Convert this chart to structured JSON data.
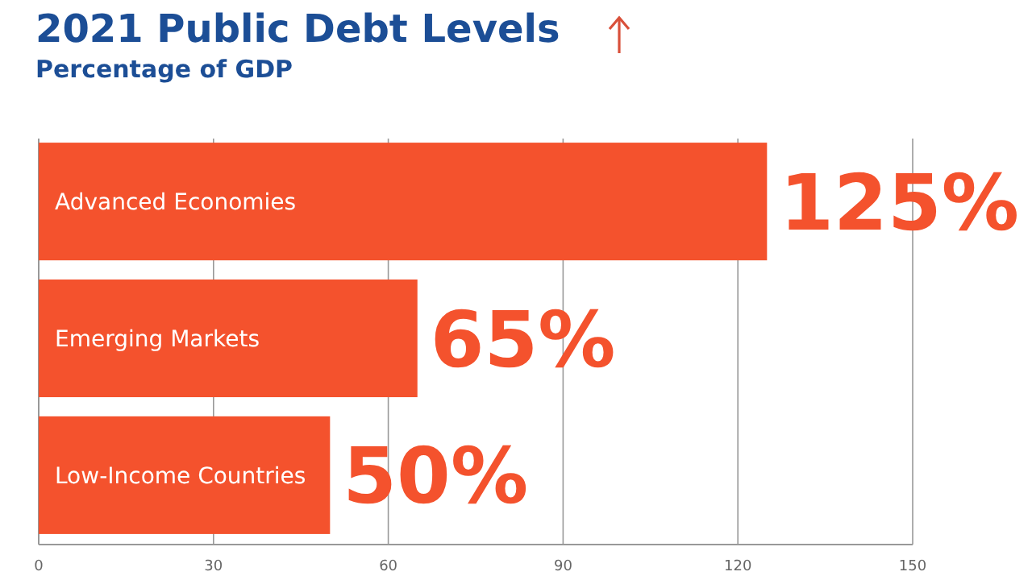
{
  "chart_data": {
    "type": "bar",
    "orientation": "horizontal",
    "title": "2021 Public Debt Levels",
    "subtitle": "Percentage of GDP",
    "categories": [
      "Advanced Economies",
      "Emerging Markets",
      "Low-Income Countries"
    ],
    "values": [
      125,
      65,
      50
    ],
    "color": "#f4522d",
    "value_labels": [
      "125%",
      "65%",
      "50%"
    ],
    "xlim": [
      0,
      150
    ],
    "xticks": [
      0,
      30,
      60,
      90,
      120,
      150
    ],
    "grid": "x"
  }
}
